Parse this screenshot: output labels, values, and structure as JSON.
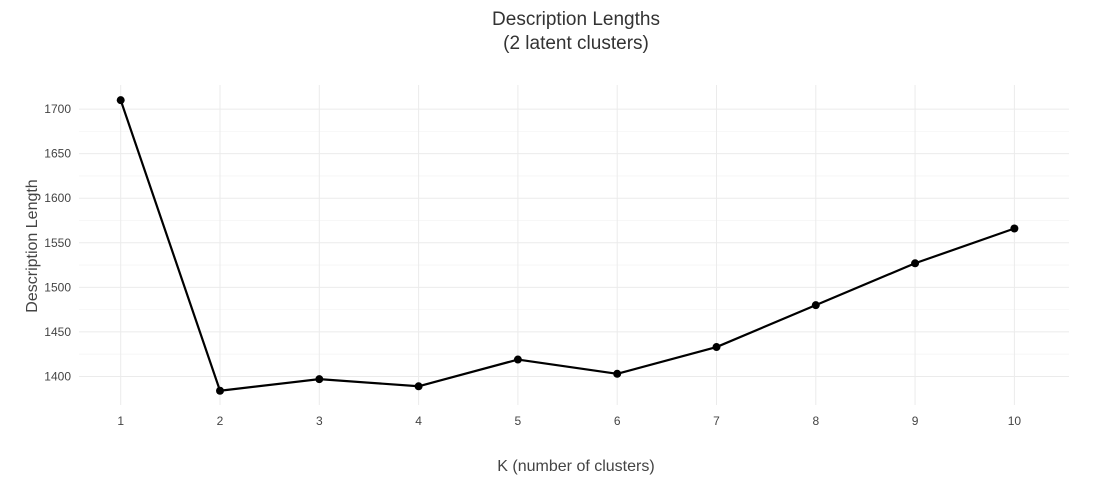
{
  "chart_data": {
    "type": "line",
    "title_line1": "Description Lengths",
    "title_line2": "(2 latent clusters)",
    "xlabel": "K (number of clusters)",
    "ylabel": "Description Length",
    "x": [
      1,
      2,
      3,
      4,
      5,
      6,
      7,
      8,
      9,
      10
    ],
    "series": [
      {
        "values": [
          1710,
          1384,
          1397,
          1389,
          1419,
          1403,
          1433,
          1480,
          1527,
          1566
        ]
      }
    ],
    "x_ticks": [
      "1",
      "2",
      "3",
      "4",
      "5",
      "6",
      "7",
      "8",
      "9",
      "10"
    ],
    "y_ticks": [
      "1400",
      "1450",
      "1500",
      "1550",
      "1600",
      "1650",
      "1700"
    ],
    "xlim": [
      0.58,
      10.55
    ],
    "ylim": [
      1368,
      1727
    ],
    "grid": true,
    "legend": "none",
    "colors": {
      "line": "#000000",
      "grid": "#ebebeb"
    }
  }
}
